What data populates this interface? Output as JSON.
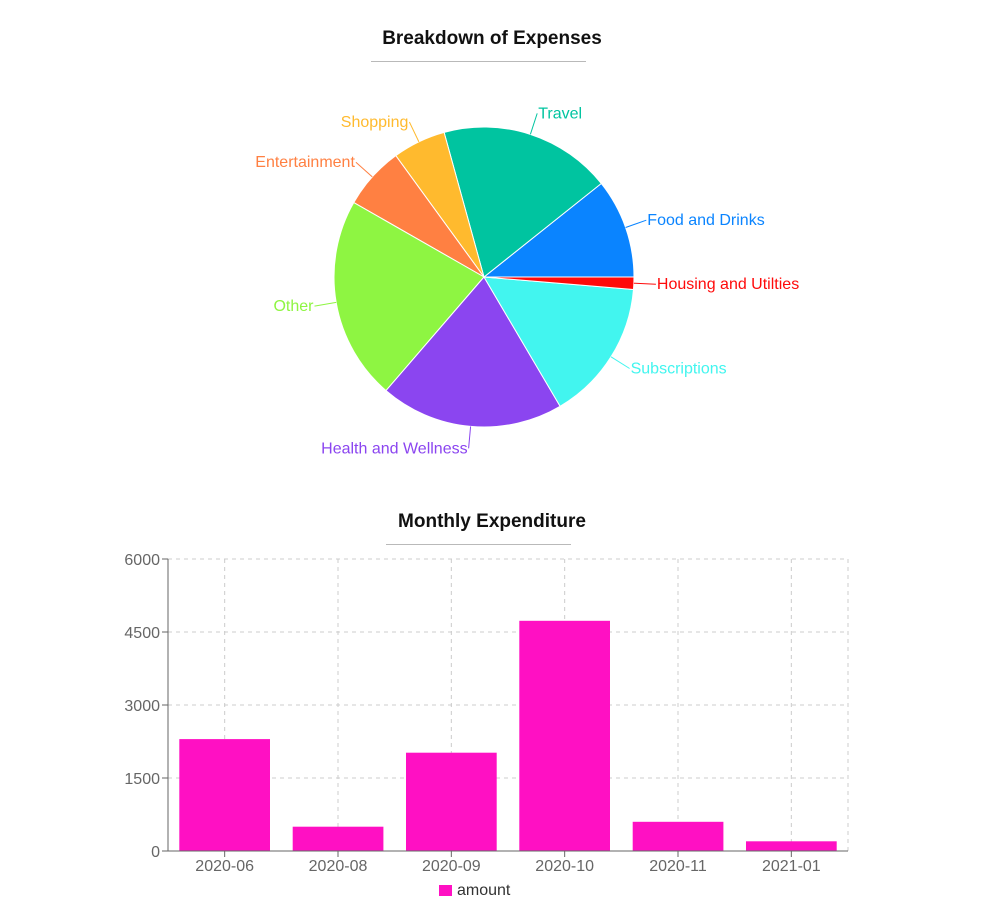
{
  "chart_data": [
    {
      "type": "pie",
      "title": "Breakdown of Expenses",
      "slices": [
        {
          "label": "Food and Drinks",
          "value": 10.5,
          "color": "#0a84ff"
        },
        {
          "label": "Travel",
          "value": 18.2,
          "color": "#00c4a0"
        },
        {
          "label": "Shopping",
          "value": 5.6,
          "color": "#ffba2e"
        },
        {
          "label": "Entertainment",
          "value": 6.6,
          "color": "#ff8042"
        },
        {
          "label": "Other",
          "value": 21.5,
          "color": "#8ef542"
        },
        {
          "label": "Health and Wellness",
          "value": 19.4,
          "color": "#8b45f0"
        },
        {
          "label": "Subscriptions",
          "value": 14.9,
          "color": "#42f5ef"
        },
        {
          "label": "Housing and Utilties",
          "value": 1.3,
          "color": "#ff0a0a"
        }
      ]
    },
    {
      "type": "bar",
      "title": "Monthly Expenditure",
      "categories": [
        "2020-06",
        "2020-08",
        "2020-09",
        "2020-10",
        "2020-11",
        "2021-01"
      ],
      "series": [
        {
          "name": "amount",
          "values": [
            2300,
            500,
            2020,
            4730,
            600,
            200
          ],
          "color": "#ff10c3"
        }
      ],
      "yticks": [
        "0",
        "1500",
        "3000",
        "4500",
        "6000"
      ],
      "ylim": [
        0,
        6000
      ],
      "grid": true,
      "legend_position": "bottom-center"
    }
  ]
}
